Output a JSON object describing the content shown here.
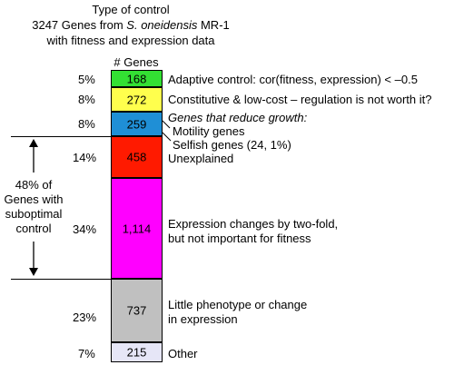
{
  "header": {
    "title": "Type of control",
    "line2_pre": "3247 Genes from ",
    "line2_italic": "S. oneidensis",
    "line2_post": " MR-1",
    "line3": "with fitness and expression data"
  },
  "column_header": "# Genes",
  "segments": [
    {
      "pct": "5%",
      "count": "168",
      "color": "#33e033"
    },
    {
      "pct": "8%",
      "count": "272",
      "color": "#ffff4d"
    },
    {
      "pct": "8%",
      "count": "259",
      "color": "#1f8fd6"
    },
    {
      "pct": "14%",
      "count": "458",
      "color": "#ff1a00"
    },
    {
      "pct": "34%",
      "count": "1,114",
      "color": "#ff00ff"
    },
    {
      "pct": "23%",
      "count": "737",
      "color": "#c0c0c0"
    },
    {
      "pct": "7%",
      "count": "215",
      "color": "#e6e6f7"
    }
  ],
  "labels": {
    "adaptive": "Adaptive control: cor(fitness, expression) < –0.5",
    "constitutive": "Constitutive & low-cost – regulation is not worth it?",
    "reduce_growth": "Genes that reduce growth:",
    "motility": "Motility genes",
    "selfish": "Selfish genes (24, 1%)",
    "unexplained": "Unexplained",
    "expression_line1": "Expression changes by two-fold,",
    "expression_line2": "but not important for fitness",
    "little_line1": "Little phenotype or change",
    "little_line2": "in expression",
    "other": "Other"
  },
  "suboptimal": {
    "line1": "48% of",
    "line2": "Genes with",
    "line3": "suboptimal",
    "line4": "control"
  }
}
